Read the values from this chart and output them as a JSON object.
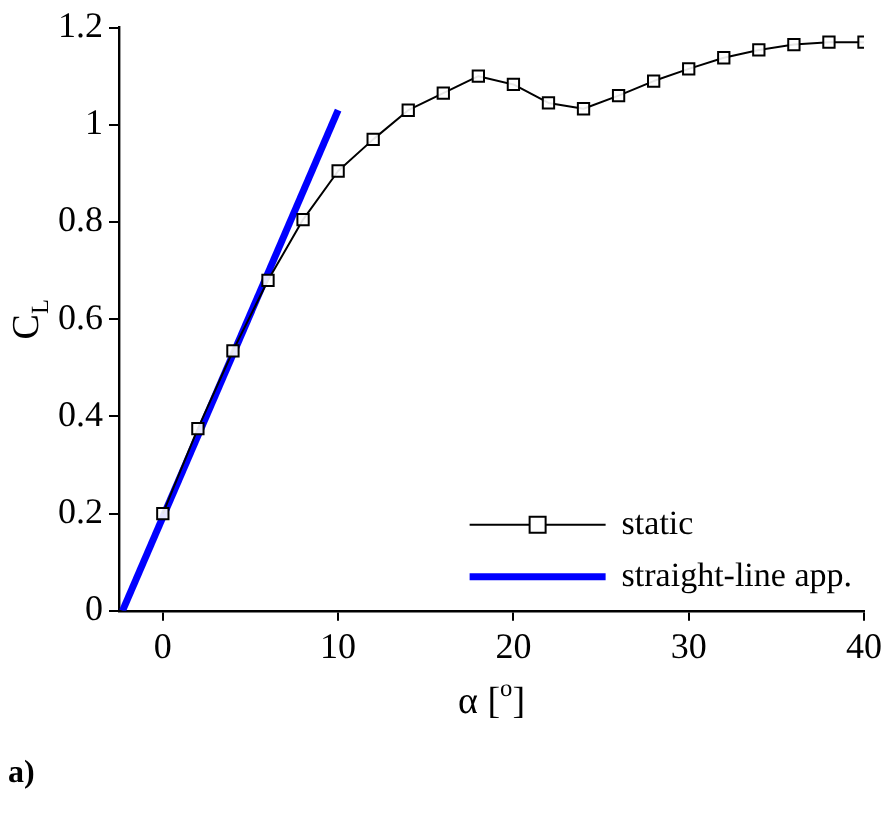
{
  "chart_data": {
    "type": "line",
    "xlabel": "α [$^{o}$]",
    "ylabel": "C$_{L}$",
    "xlim": [
      -2.5,
      40
    ],
    "xticks": [
      0,
      10,
      20,
      30,
      40
    ],
    "ylim": [
      0,
      1.2
    ],
    "yticks": [
      0,
      {
        "value": 0.2,
        "label": "0.2"
      },
      {
        "value": 0.4,
        "label": "0.4"
      },
      {
        "value": 0.6,
        "label": "0.6"
      },
      {
        "value": 0.8,
        "label": "0.8"
      },
      1,
      {
        "value": 1.2,
        "label": "1.2"
      }
    ],
    "grid": false,
    "legend": "bottom right",
    "series": [
      {
        "name": "static",
        "color": "#000000",
        "marker": "square",
        "x": [
          0,
          2,
          4,
          6,
          8,
          10,
          12,
          14,
          16,
          18,
          20,
          22,
          24,
          26,
          28,
          30,
          32,
          34,
          36,
          38,
          40
        ],
        "values": [
          0.2,
          0.375,
          0.535,
          0.68,
          0.805,
          0.905,
          0.97,
          1.03,
          1.065,
          1.1,
          1.083,
          1.045,
          1.033,
          1.06,
          1.09,
          1.115,
          1.138,
          1.154,
          1.165,
          1.17,
          1.17
        ]
      },
      {
        "name": "straight-line app.",
        "color": "#0000ff",
        "marker": "none",
        "x": [
          -2.3,
          10
        ],
        "values": [
          0,
          1.03
        ]
      }
    ],
    "annotations": [
      "a)"
    ]
  }
}
